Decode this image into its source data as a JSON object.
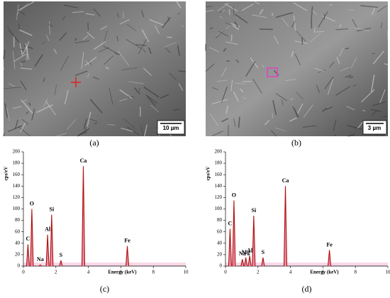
{
  "panels": [
    {
      "label": "(a)",
      "scale_bar": "10 µm"
    },
    {
      "label": "(b)",
      "scale_bar": "3 µm"
    }
  ],
  "chart_data": [
    {
      "type": "peaks",
      "panel_label": "(c)",
      "x_label": "Energy (keV)",
      "y_label": "cps/eV",
      "x": [
        0.28,
        0.52,
        1.04,
        1.49,
        1.74,
        2.31,
        3.69,
        6.4
      ],
      "values": [
        38,
        100,
        2,
        55,
        90,
        10,
        175,
        35
      ],
      "peak_labels": [
        "C",
        "O",
        "Na",
        "Al",
        "Si",
        "S",
        "Ca",
        "Fe"
      ],
      "color": "#b01010",
      "xlim": [
        0,
        10
      ],
      "ylim": [
        0,
        200
      ],
      "xticks": [
        0,
        2,
        4,
        6,
        8,
        10
      ],
      "yticks": [
        0,
        20,
        40,
        60,
        80,
        100,
        120,
        140,
        160,
        180,
        200
      ]
    },
    {
      "type": "peaks",
      "panel_label": "(d)",
      "x_label": "Energy (keV)",
      "y_label": "cps/eV",
      "x": [
        0.28,
        0.52,
        1.04,
        1.25,
        1.49,
        1.74,
        2.31,
        3.69,
        6.4
      ],
      "values": [
        65,
        115,
        12,
        15,
        18,
        88,
        15,
        140,
        28
      ],
      "peak_labels": [
        "C",
        "O",
        "Na",
        "Mg",
        "Al",
        "Si",
        "S",
        "Ca",
        "Fe"
      ],
      "color": "#b01010",
      "xlim": [
        0,
        10
      ],
      "ylim": [
        0,
        200
      ],
      "xticks": [
        0,
        2,
        4,
        6,
        8,
        10
      ],
      "yticks": [
        0,
        20,
        40,
        60,
        80,
        100,
        120,
        140,
        160,
        180,
        200
      ]
    }
  ]
}
